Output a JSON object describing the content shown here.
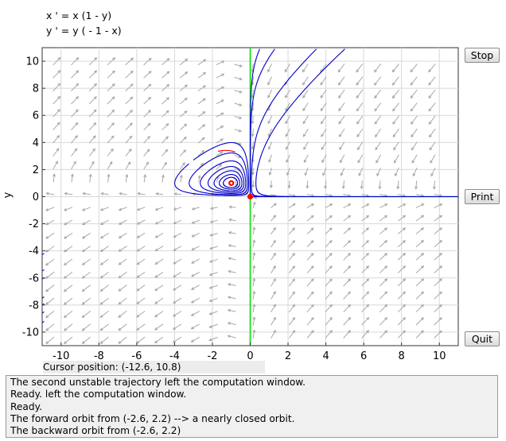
{
  "equations": {
    "line1": "x ' = x (1 - y)",
    "line2": "y ' = y ( - 1 - x)"
  },
  "buttons": {
    "stop": "Stop",
    "print": "Print",
    "quit": "Quit"
  },
  "axis": {
    "ylabel": "y",
    "xlim": [
      -11,
      11
    ],
    "ylim": [
      -11,
      11
    ],
    "xticks": [
      -10,
      -8,
      -6,
      -4,
      -2,
      0,
      2,
      4,
      6,
      8,
      10
    ],
    "yticks": [
      -10,
      -8,
      -6,
      -4,
      -2,
      0,
      2,
      4,
      6,
      8,
      10
    ],
    "grid": true
  },
  "cursor": {
    "label": "Cursor position:",
    "value": "(-12.6, 10.8)"
  },
  "log": [
    "The second unstable trajectory left the computation window.",
    "Ready. left the computation window.",
    "Ready.",
    "The forward orbit from (-2.6, 2.2) --> a nearly closed orbit.",
    "The backward orbit from (-2.6, 2.2)"
  ],
  "colors": {
    "trajectory": "#0000cc",
    "separatrix": "#00e000",
    "equilibrium": "#ff0000",
    "field": "#a8a8a8"
  },
  "equilibria": [
    {
      "x": 0,
      "y": 0
    },
    {
      "x": -1,
      "y": 1
    }
  ]
}
